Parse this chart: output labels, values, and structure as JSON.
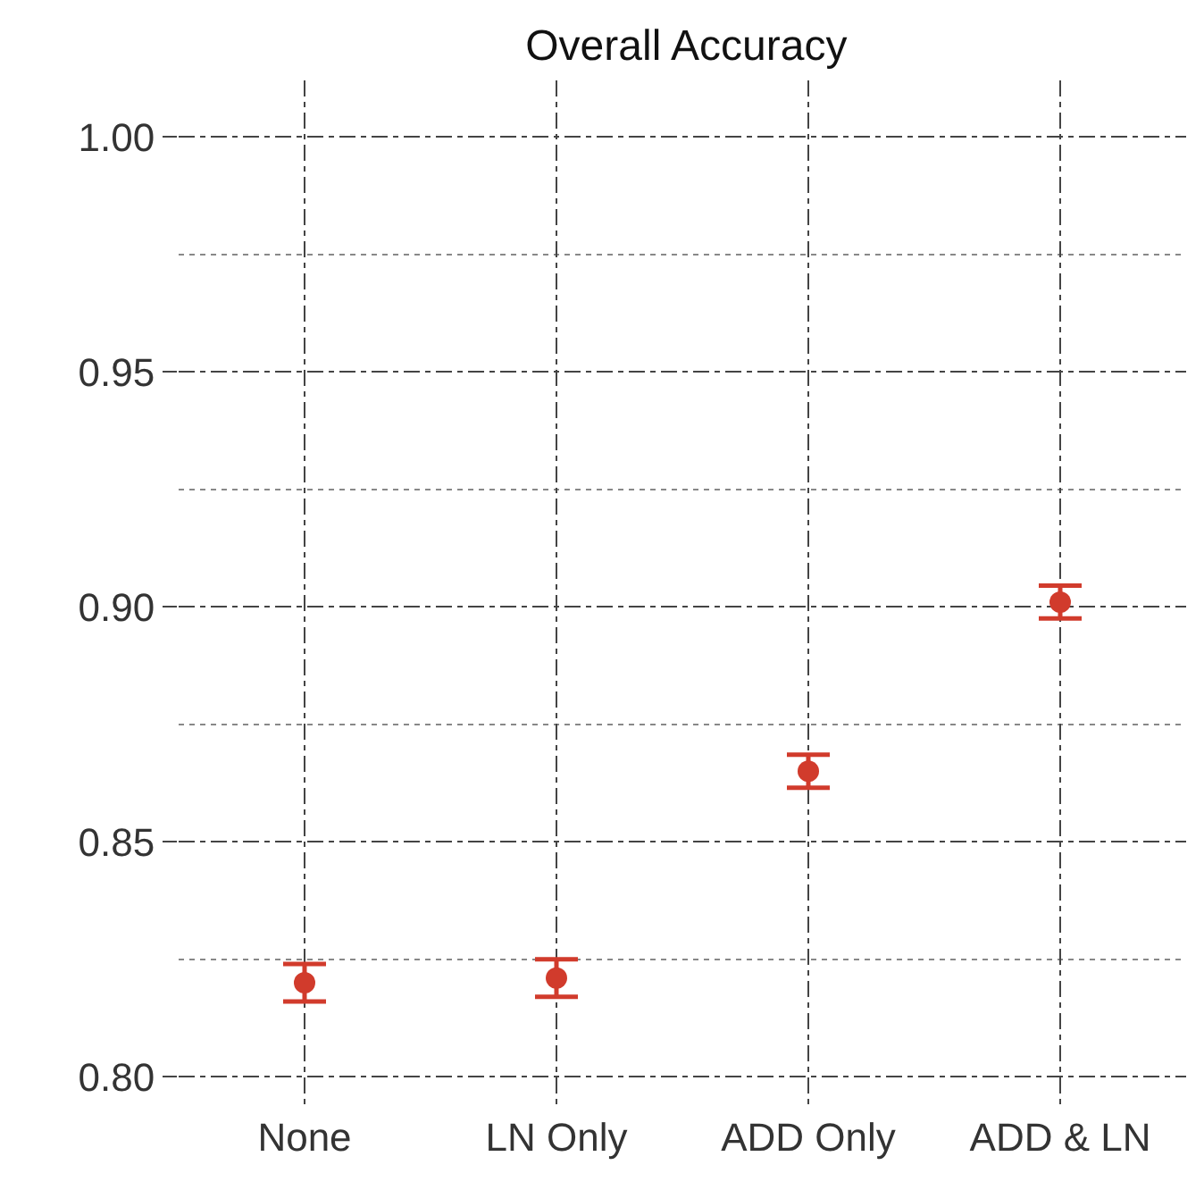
{
  "chart_data": {
    "type": "scatter",
    "title": "Overall Accuracy",
    "categories": [
      "None",
      "LN Only",
      "ADD Only",
      "ADD & LN"
    ],
    "series": [
      {
        "color": "#d13b2c",
        "values": [
          0.82,
          0.821,
          0.865,
          0.901
        ],
        "errors": [
          0.004,
          0.004,
          0.0035,
          0.0035
        ]
      }
    ],
    "ylim": [
      0.793,
      1.012
    ],
    "yticks": [
      {
        "value": 0.8,
        "label": "0.80"
      },
      {
        "value": 0.85,
        "label": "0.85"
      },
      {
        "value": 0.9,
        "label": "0.90"
      },
      {
        "value": 0.95,
        "label": "0.95"
      },
      {
        "value": 1.0,
        "label": "1.00"
      }
    ],
    "grid": true,
    "marker": "circle",
    "legend": false
  }
}
